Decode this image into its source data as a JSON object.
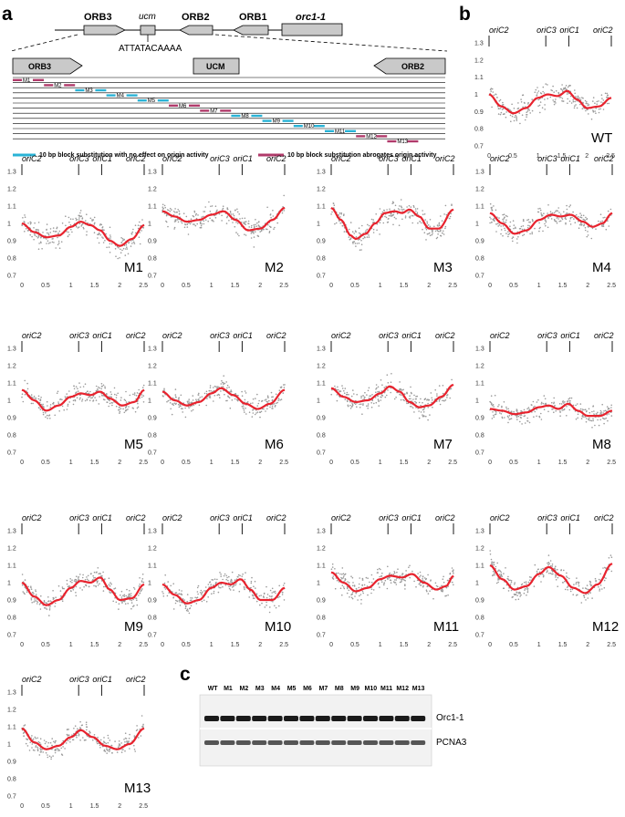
{
  "panel_labels": {
    "a": "a",
    "b": "b",
    "c": "c"
  },
  "gene_map": {
    "orb3": "ORB3",
    "ucm_italic": "ucm",
    "orb2": "ORB2",
    "orb1": "ORB1",
    "orc": "orc1-1",
    "sequence": "ATTATACAAAA"
  },
  "zoom": {
    "orb3": "ORB3",
    "ucm": "UCM",
    "orb2": "ORB2",
    "blocks": [
      {
        "label": "M1",
        "effect": "abrogates"
      },
      {
        "label": "M2",
        "effect": "abrogates"
      },
      {
        "label": "M3",
        "effect": "none"
      },
      {
        "label": "M4",
        "effect": "none"
      },
      {
        "label": "M5",
        "effect": "none"
      },
      {
        "label": "M6",
        "effect": "abrogates"
      },
      {
        "label": "M7",
        "effect": "abrogates"
      },
      {
        "label": "M8",
        "effect": "none"
      },
      {
        "label": "M9",
        "effect": "none"
      },
      {
        "label": "M10",
        "effect": "none"
      },
      {
        "label": "M11",
        "effect": "none"
      },
      {
        "label": "M12",
        "effect": "abrogates"
      },
      {
        "label": "M13",
        "effect": "abrogates"
      }
    ]
  },
  "legend": {
    "none": "10 bp block substitution with no effect on origin activity",
    "abrogates": "10 bp block substitution abrogates origin activity"
  },
  "colors": {
    "none": "#29b3d6",
    "abrogates": "#b03a6a",
    "fit": "#e8232e",
    "scatter": "#9a9a9a",
    "box": "#c9c9c9"
  },
  "chart_data": [
    {
      "type": "scatter",
      "name": "WT",
      "x_range": [
        0,
        2.5
      ],
      "ylim": [
        0.7,
        1.3
      ],
      "fit": {
        "x": [
          0,
          0.25,
          0.5,
          0.75,
          1.0,
          1.2,
          1.4,
          1.6,
          1.8,
          2.0,
          2.25,
          2.5
        ],
        "y": [
          1.0,
          0.93,
          0.89,
          0.92,
          0.98,
          1.0,
          0.99,
          1.02,
          0.97,
          0.92,
          0.93,
          0.98
        ]
      }
    },
    {
      "type": "scatter",
      "name": "M1",
      "x_range": [
        0,
        2.5
      ],
      "ylim": [
        0.7,
        1.3
      ],
      "fit": {
        "x": [
          0,
          0.25,
          0.5,
          0.75,
          1.0,
          1.2,
          1.4,
          1.6,
          1.8,
          2.0,
          2.25,
          2.5
        ],
        "y": [
          1.0,
          0.95,
          0.92,
          0.93,
          0.98,
          1.01,
          0.99,
          0.96,
          0.9,
          0.87,
          0.91,
          0.99
        ]
      }
    },
    {
      "type": "scatter",
      "name": "M2",
      "x_range": [
        0,
        2.5
      ],
      "ylim": [
        0.7,
        1.3
      ],
      "fit": {
        "x": [
          0,
          0.25,
          0.5,
          0.75,
          1.0,
          1.25,
          1.5,
          1.75,
          2.0,
          2.25,
          2.5
        ],
        "y": [
          1.07,
          1.04,
          1.01,
          1.02,
          1.05,
          1.07,
          1.02,
          0.96,
          0.97,
          1.02,
          1.09
        ]
      }
    },
    {
      "type": "scatter",
      "name": "M3",
      "x_range": [
        0,
        2.5
      ],
      "ylim": [
        0.7,
        1.3
      ],
      "fit": {
        "x": [
          0,
          0.2,
          0.4,
          0.5,
          0.7,
          0.9,
          1.1,
          1.3,
          1.45,
          1.6,
          1.8,
          2.0,
          2.2,
          2.5
        ],
        "y": [
          1.09,
          1.02,
          0.93,
          0.91,
          0.94,
          1.0,
          1.06,
          1.07,
          1.06,
          1.08,
          1.04,
          0.97,
          0.97,
          1.08
        ]
      }
    },
    {
      "type": "scatter",
      "name": "M4",
      "x_range": [
        0,
        2.5
      ],
      "ylim": [
        0.7,
        1.3
      ],
      "fit": {
        "x": [
          0,
          0.25,
          0.5,
          0.75,
          1.0,
          1.25,
          1.45,
          1.65,
          1.9,
          2.1,
          2.3,
          2.5
        ],
        "y": [
          1.06,
          1.0,
          0.94,
          0.96,
          1.02,
          1.05,
          1.04,
          1.05,
          1.01,
          0.98,
          1.0,
          1.06
        ]
      }
    },
    {
      "type": "scatter",
      "name": "M5",
      "x_range": [
        0,
        2.5
      ],
      "ylim": [
        0.7,
        1.3
      ],
      "fit": {
        "x": [
          0,
          0.25,
          0.5,
          0.75,
          1.0,
          1.2,
          1.4,
          1.6,
          1.8,
          2.05,
          2.3,
          2.5
        ],
        "y": [
          1.06,
          1.0,
          0.94,
          0.97,
          1.02,
          1.04,
          1.03,
          1.05,
          1.01,
          0.97,
          0.99,
          1.06
        ]
      }
    },
    {
      "type": "scatter",
      "name": "M6",
      "x_range": [
        0,
        2.5
      ],
      "ylim": [
        0.7,
        1.3
      ],
      "fit": {
        "x": [
          0,
          0.25,
          0.5,
          0.75,
          1.0,
          1.2,
          1.45,
          1.7,
          1.95,
          2.2,
          2.5
        ],
        "y": [
          1.05,
          1.0,
          0.97,
          0.99,
          1.04,
          1.07,
          1.03,
          0.98,
          0.95,
          0.98,
          1.06
        ]
      }
    },
    {
      "type": "scatter",
      "name": "M7",
      "x_range": [
        0,
        2.5
      ],
      "ylim": [
        0.7,
        1.3
      ],
      "fit": {
        "x": [
          0,
          0.25,
          0.5,
          0.75,
          1.0,
          1.2,
          1.4,
          1.6,
          1.8,
          2.0,
          2.25,
          2.5
        ],
        "y": [
          1.07,
          1.02,
          0.99,
          1.0,
          1.04,
          1.08,
          1.05,
          0.99,
          0.96,
          0.97,
          1.02,
          1.09
        ]
      }
    },
    {
      "type": "scatter",
      "name": "M8",
      "x_range": [
        0,
        2.5
      ],
      "ylim": [
        0.7,
        1.3
      ],
      "fit": {
        "x": [
          0,
          0.25,
          0.5,
          0.75,
          1.0,
          1.2,
          1.4,
          1.6,
          1.8,
          2.0,
          2.25,
          2.5
        ],
        "y": [
          0.95,
          0.94,
          0.92,
          0.93,
          0.96,
          0.97,
          0.95,
          0.98,
          0.94,
          0.91,
          0.91,
          0.94
        ]
      }
    },
    {
      "type": "scatter",
      "name": "M9",
      "x_range": [
        0,
        2.5
      ],
      "ylim": [
        0.7,
        1.3
      ],
      "fit": {
        "x": [
          0,
          0.25,
          0.5,
          0.75,
          1.0,
          1.2,
          1.4,
          1.6,
          1.8,
          2.0,
          2.25,
          2.5
        ],
        "y": [
          1.0,
          0.92,
          0.87,
          0.9,
          0.97,
          1.01,
          1.0,
          1.03,
          0.96,
          0.9,
          0.91,
          0.99
        ]
      }
    },
    {
      "type": "scatter",
      "name": "M10",
      "x_range": [
        0,
        2.5
      ],
      "ylim": [
        0.7,
        1.3
      ],
      "fit": {
        "x": [
          0,
          0.25,
          0.5,
          0.75,
          1.0,
          1.2,
          1.4,
          1.6,
          1.8,
          2.0,
          2.25,
          2.5
        ],
        "y": [
          0.99,
          0.93,
          0.88,
          0.9,
          0.97,
          1.0,
          0.99,
          1.02,
          0.96,
          0.9,
          0.9,
          0.97
        ]
      }
    },
    {
      "type": "scatter",
      "name": "M11",
      "x_range": [
        0,
        2.5
      ],
      "ylim": [
        0.7,
        1.3
      ],
      "fit": {
        "x": [
          0,
          0.25,
          0.5,
          0.75,
          1.0,
          1.2,
          1.45,
          1.65,
          1.9,
          2.15,
          2.35,
          2.5
        ],
        "y": [
          1.06,
          1.0,
          0.95,
          0.97,
          1.02,
          1.04,
          1.03,
          1.05,
          1.0,
          0.96,
          0.98,
          1.04
        ]
      }
    },
    {
      "type": "scatter",
      "name": "M12",
      "x_range": [
        0,
        2.5
      ],
      "ylim": [
        0.7,
        1.3
      ],
      "fit": {
        "x": [
          0,
          0.25,
          0.5,
          0.75,
          1.0,
          1.2,
          1.45,
          1.7,
          1.95,
          2.2,
          2.5
        ],
        "y": [
          1.1,
          1.02,
          0.96,
          0.98,
          1.05,
          1.09,
          1.04,
          0.97,
          0.94,
          0.99,
          1.11
        ]
      }
    },
    {
      "type": "scatter",
      "name": "M13",
      "x_range": [
        0,
        2.5
      ],
      "ylim": [
        0.7,
        1.3
      ],
      "fit": {
        "x": [
          0,
          0.25,
          0.5,
          0.75,
          1.0,
          1.2,
          1.45,
          1.7,
          1.95,
          2.2,
          2.5
        ],
        "y": [
          1.09,
          1.01,
          0.97,
          0.99,
          1.04,
          1.08,
          1.04,
          0.99,
          0.97,
          1.0,
          1.09
        ]
      }
    }
  ],
  "axis": {
    "yticks": [
      "1.3",
      "1.2",
      "1.1",
      "1",
      "0.9",
      "0.8",
      "0.7"
    ],
    "xticks": [
      "0",
      "0.5",
      "1",
      "1.5",
      "2",
      "2.5"
    ],
    "origins": [
      {
        "label": "oriC2",
        "pos": 0.0
      },
      {
        "label": "oriC3",
        "pos": 1.16
      },
      {
        "label": "oriC1",
        "pos": 1.63
      },
      {
        "label": "oriC2",
        "pos": 2.5
      }
    ]
  },
  "blot": {
    "lanes": [
      "WT",
      "M1",
      "M2",
      "M3",
      "M4",
      "M5",
      "M6",
      "M7",
      "M8",
      "M9",
      "M10",
      "M11",
      "M12",
      "M13"
    ],
    "bands": [
      "Orc1-1",
      "PCNA3"
    ]
  }
}
